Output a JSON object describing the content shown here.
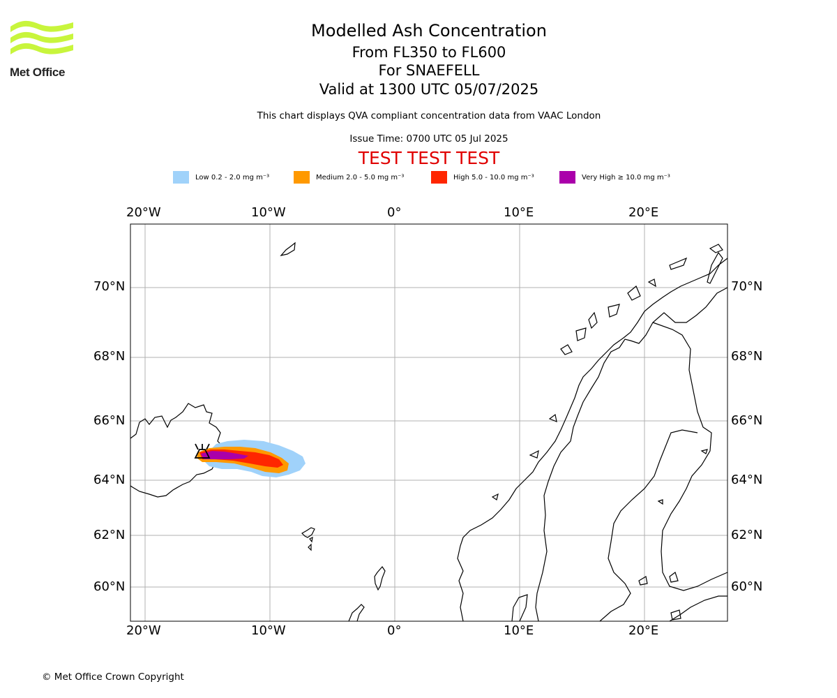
{
  "logo": {
    "text": "Met Office",
    "wave_color": "#c8f53c"
  },
  "header": {
    "title": "Modelled Ash Concentration",
    "levels": "From FL350 to FL600",
    "volcano": "For SNAEFELL",
    "valid": "Valid at 1300 UTC 05/07/2025",
    "description": "This chart displays QVA compliant concentration data from VAAC London",
    "issue_time": "Issue Time: 0700 UTC 05 Jul 2025",
    "test_banner": "TEST TEST TEST"
  },
  "legend": [
    {
      "label": "Low 0.2 - 2.0 mg m⁻³",
      "color": "#a0d2fa"
    },
    {
      "label": "Medium 2.0 - 5.0 mg m⁻³",
      "color": "#ff9900"
    },
    {
      "label": "High 5.0 - 10.0 mg m⁻³",
      "color": "#ff2600"
    },
    {
      "label": "Very High ≥ 10.0 mg m⁻³",
      "color": "#aa00aa"
    }
  ],
  "map": {
    "lon_labels": [
      "20°W",
      "10°W",
      "0°",
      "10°E",
      "20°E"
    ],
    "lat_labels": [
      "70°N",
      "68°N",
      "66°N",
      "64°N",
      "62°N",
      "60°N"
    ],
    "gridline_color": "#b0b0b0"
  },
  "footer": {
    "copyright": "© Met Office Crown Copyright"
  }
}
